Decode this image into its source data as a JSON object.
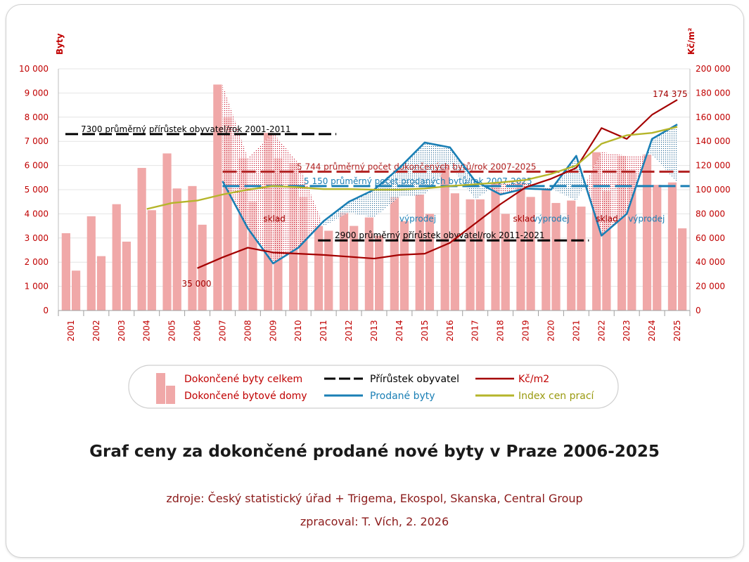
{
  "title": "Graf ceny za dokončené prodané nové byty v Praze 2006-2025",
  "source_line": "zdroje: Český statistický úřad + Trigema, Ekospol, Skanska, Central Group",
  "author_line": "zpracoval: T. Vích, 2. 2026",
  "colors": {
    "bar": "#f0a8a8",
    "bar_dots": "#c4001a",
    "growth": "#000000",
    "price": "#a40000",
    "sold": "#1a7fb5",
    "index": "#b5b52a",
    "avg_completed": "#b22222",
    "avg_sold": "#1a7fb5",
    "axis_text": "#c00000",
    "grid": "#e4e4e4"
  },
  "chart_data": {
    "type": "bar",
    "left_axis": {
      "label": "Byty",
      "range": [
        0,
        10000
      ],
      "ticks": [
        "0",
        "1 000",
        "2 000",
        "3 000",
        "4 000",
        "5 000",
        "6 000",
        "7 000",
        "8 000",
        "9 000",
        "10 000"
      ]
    },
    "right_axis": {
      "label": "Kč/m²",
      "range": [
        0,
        200000
      ],
      "ticks": [
        "0",
        "20 000",
        "40 000",
        "60 000",
        "80 000",
        "100 000",
        "120 000",
        "140 000",
        "160 000",
        "180 000",
        "200 000"
      ]
    },
    "categories": [
      "2001",
      "2002",
      "2003",
      "2004",
      "2005",
      "2006",
      "2007",
      "2008",
      "2009",
      "2010",
      "2011",
      "2012",
      "2013",
      "2014",
      "2015",
      "2016",
      "2017",
      "2018",
      "2019",
      "2020",
      "2021",
      "2022",
      "2023",
      "2024",
      "2025"
    ],
    "series": [
      {
        "name": "Dokončené byty celkem",
        "kind": "bar",
        "axis": "left",
        "values": [
          3200,
          3900,
          4400,
          5900,
          6500,
          5150,
          9350,
          6300,
          7350,
          6100,
          3500,
          4050,
          3850,
          4700,
          4800,
          6050,
          4600,
          5300,
          5300,
          5050,
          4550,
          6550,
          6400,
          6450,
          5300
        ]
      },
      {
        "name": "Dokončené bytové domy",
        "kind": "bar",
        "axis": "left",
        "values": [
          1650,
          2250,
          2850,
          4150,
          5050,
          3550,
          8000,
          4500,
          6300,
          4700,
          3300,
          3500,
          3100,
          3700,
          4000,
          4850,
          4600,
          4000,
          4700,
          4450,
          4300,
          4950,
          5700,
          5200,
          3400
        ]
      },
      {
        "name": "Prodané byty",
        "kind": "line",
        "axis": "left",
        "values": [
          null,
          null,
          null,
          null,
          null,
          null,
          5350,
          3400,
          1950,
          2600,
          3700,
          4500,
          5000,
          5900,
          6950,
          6750,
          5350,
          4800,
          5050,
          5000,
          6400,
          3100,
          4000,
          7100,
          7700
        ]
      },
      {
        "name": "Kč/m2",
        "kind": "line",
        "axis": "right",
        "values": [
          null,
          null,
          null,
          null,
          null,
          35000,
          44000,
          52000,
          48000,
          47000,
          46000,
          44500,
          43000,
          46000,
          47000,
          56000,
          72000,
          88000,
          102000,
          109000,
          118000,
          151000,
          142000,
          162000,
          174375
        ]
      },
      {
        "name": "Index cen prací",
        "kind": "line",
        "axis": "right",
        "values": [
          null,
          null,
          null,
          84000,
          89000,
          91000,
          96000,
          100000,
          103000,
          102000,
          100500,
          100500,
          100000,
          100000,
          101000,
          103000,
          104500,
          106000,
          108000,
          113000,
          120000,
          138000,
          145000,
          147000,
          152000
        ]
      }
    ],
    "reference_lines": [
      {
        "label": "7300 průměrný přírůstek obyvatel/rok 2001-2011",
        "axis": "left",
        "y": 7300,
        "x_from": "2001",
        "x_to": "2011"
      },
      {
        "label": "2900 průměrný přírůstek obyvatel/rok 2011-2021",
        "axis": "left",
        "y": 2900,
        "x_from": "2011",
        "x_to": "2021"
      },
      {
        "label": "5 744 průměrný počet dokončených bytů/rok 2007-2025",
        "axis": "left",
        "y": 5744,
        "x_from": "2007",
        "x_to": "2025"
      },
      {
        "label": "5 150 průměrný počet prodaných bytů/rok 2007-2025",
        "axis": "left",
        "y": 5150,
        "x_from": "2007",
        "x_to": "2025"
      }
    ],
    "annotations": [
      {
        "text": "35 000",
        "x": "2006",
        "axis": "right",
        "y": 35000,
        "color": "price"
      },
      {
        "text": "174 375",
        "x": "2025",
        "axis": "right",
        "y": 174375,
        "color": "price"
      },
      {
        "text": "sklad",
        "x": "2009",
        "axis": "left",
        "y": 3800,
        "color": "price"
      },
      {
        "text": "výprodej",
        "x": "2014",
        "axis": "left",
        "y": 3800,
        "color": "sold"
      },
      {
        "text": "sklad",
        "x": "2019",
        "axis": "left",
        "y": 3800,
        "color": "price"
      },
      {
        "text": "výprodej",
        "x": "2020",
        "axis": "left",
        "y": 3800,
        "color": "sold"
      },
      {
        "text": "sklad",
        "x": "2022",
        "axis": "left",
        "y": 3800,
        "color": "price"
      },
      {
        "text": "výprodej",
        "x": "2023",
        "axis": "left",
        "y": 3800,
        "color": "sold"
      }
    ],
    "legend": {
      "position": "bottom",
      "items": [
        {
          "label": "Dokončené byty celkem",
          "type": "bar",
          "color": "price"
        },
        {
          "label": "Dokončené bytové domy",
          "type": "bar",
          "color": "price"
        },
        {
          "label": "Přírůstek obyvatel",
          "type": "dashed",
          "color": "growth"
        },
        {
          "label": "Prodané byty",
          "type": "line",
          "color": "sold"
        },
        {
          "label": "Kč/m2",
          "type": "line",
          "color": "price"
        },
        {
          "label": "Index cen prací",
          "type": "line",
          "color": "index"
        }
      ]
    }
  }
}
